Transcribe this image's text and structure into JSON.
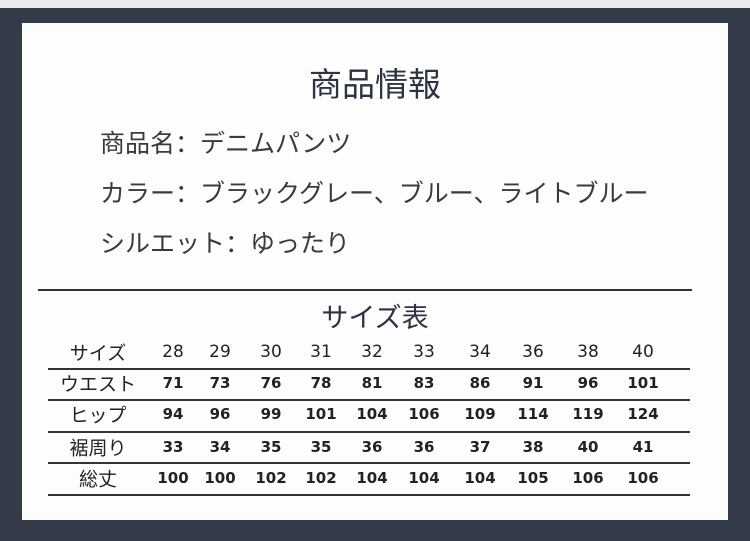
{
  "title": "商品情報",
  "info": [
    "商品名：デニムパンツ",
    "カラー：ブラックグレー、ブルー、ライトブルー",
    "シルエット：ゆったり"
  ],
  "size_table": {
    "title": "サイズ表",
    "rows": [
      {
        "label": "サイズ",
        "values": [
          "28",
          "29",
          "30",
          "31",
          "32",
          "33",
          "34",
          "36",
          "38",
          "40"
        ]
      },
      {
        "label": "ウエスト",
        "values": [
          "71",
          "73",
          "76",
          "78",
          "81",
          "83",
          "86",
          "91",
          "96",
          "101"
        ]
      },
      {
        "label": "ヒップ",
        "values": [
          "94",
          "96",
          "99",
          "101",
          "104",
          "106",
          "109",
          "114",
          "119",
          "124"
        ]
      },
      {
        "label": "裾周り",
        "values": [
          "33",
          "34",
          "35",
          "35",
          "36",
          "36",
          "37",
          "38",
          "40",
          "41"
        ]
      },
      {
        "label": "総丈",
        "values": [
          "100",
          "100",
          "102",
          "102",
          "104",
          "104",
          "104",
          "105",
          "106",
          "106"
        ]
      }
    ]
  },
  "colors": {
    "frame": "#333a48",
    "title": "#2b3443"
  }
}
